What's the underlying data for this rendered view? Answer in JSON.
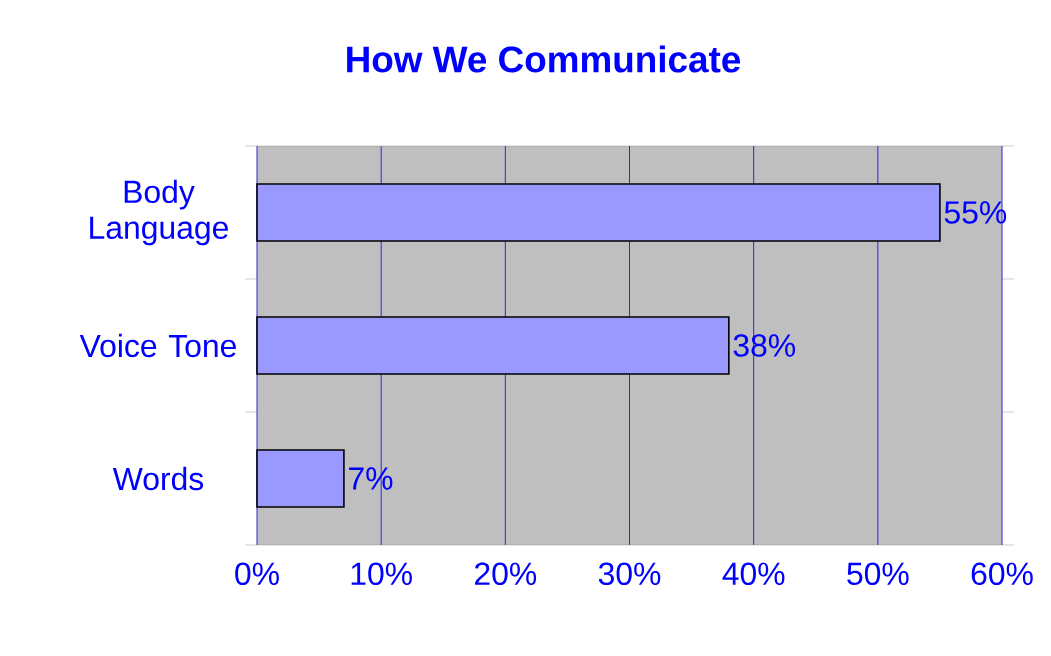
{
  "chart_data": {
    "type": "bar",
    "orientation": "horizontal",
    "title": "How We Communicate",
    "categories": [
      "Body Language",
      "Voice Tone",
      "Words"
    ],
    "values": [
      55,
      38,
      7
    ],
    "value_labels": [
      "55%",
      "38%",
      "7%"
    ],
    "color": "#9999ff",
    "xlim": [
      0,
      60
    ],
    "xticks": [
      {
        "value": 0,
        "label": "0%"
      },
      {
        "value": 10,
        "label": "10%"
      },
      {
        "value": 20,
        "label": "20%"
      },
      {
        "value": 30,
        "label": "30%"
      },
      {
        "value": 40,
        "label": "40%"
      },
      {
        "value": 50,
        "label": "50%"
      },
      {
        "value": 60,
        "label": "60%"
      }
    ],
    "grid": "x"
  }
}
